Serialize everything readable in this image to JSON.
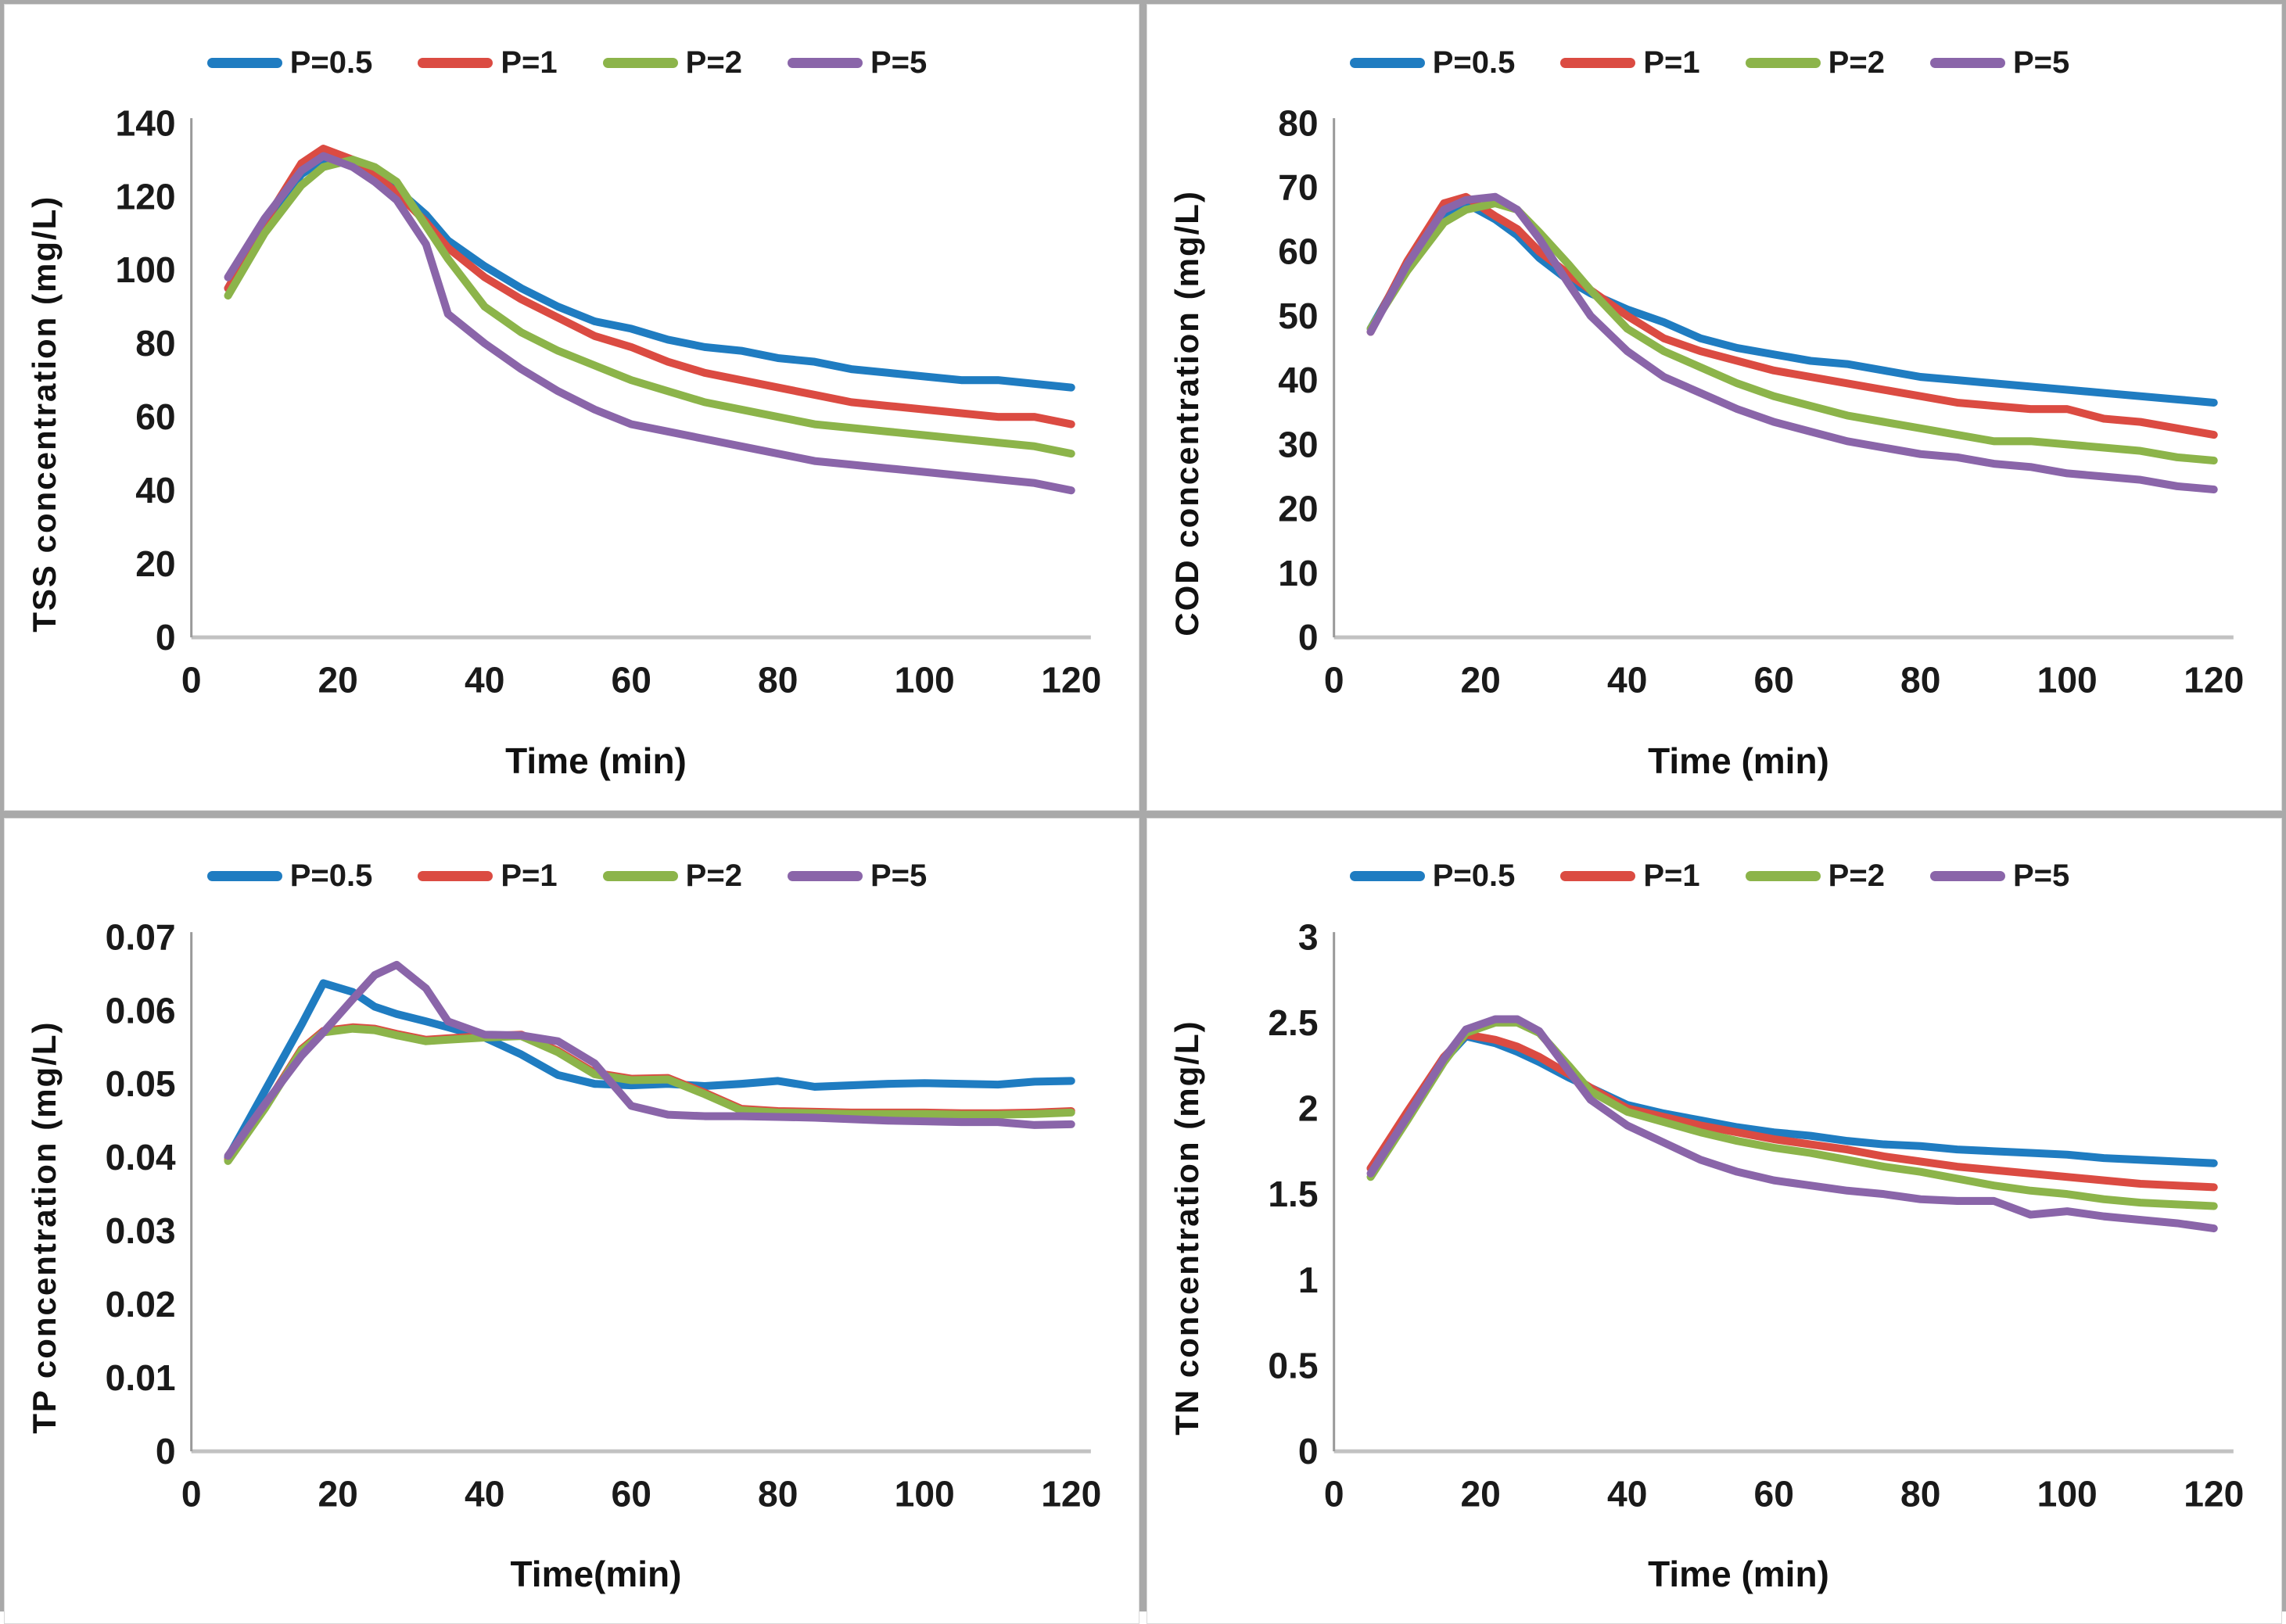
{
  "legend_labels": [
    "P=0.5",
    "P=1",
    "P=2",
    "P=5"
  ],
  "colors": {
    "p05": "#1F7CC1",
    "p1": "#DB4B42",
    "p2": "#8CB44A",
    "p5": "#8A65A9",
    "y_axis_line": "#9a9a9a",
    "x_axis_line": "#c2c2c2",
    "frame": "#a9a9a9"
  },
  "chart_data": [
    {
      "id": "tss",
      "type": "line",
      "title": "",
      "ylabel": "TSS concentration (mg/L)",
      "xlabel": "Time (min)",
      "ylim": [
        0,
        140
      ],
      "ytick": 20,
      "xlim": [
        0,
        120
      ],
      "xtick": 20,
      "grid": false,
      "legend_position": "top",
      "x": [
        5,
        10,
        15,
        18,
        22,
        25,
        28,
        32,
        35,
        40,
        45,
        50,
        55,
        60,
        65,
        70,
        75,
        80,
        85,
        90,
        95,
        100,
        105,
        110,
        115,
        120
      ],
      "series": [
        {
          "name": "P=0.5",
          "color": "#1F7CC1",
          "values": [
            95,
            112,
            126,
            130,
            129,
            127,
            122,
            115,
            108,
            101,
            95,
            90,
            86,
            84,
            81,
            79,
            78,
            76,
            75,
            73,
            72,
            71,
            70,
            70,
            69,
            68
          ]
        },
        {
          "name": "P=1",
          "color": "#DB4B42",
          "values": [
            95,
            113,
            129,
            133,
            130,
            126,
            121,
            113,
            106,
            98,
            92,
            87,
            82,
            79,
            75,
            72,
            70,
            68,
            66,
            64,
            63,
            62,
            61,
            60,
            60,
            58
          ]
        },
        {
          "name": "P=2",
          "color": "#8CB44A",
          "values": [
            93,
            110,
            123,
            128,
            130,
            128,
            124,
            112,
            103,
            90,
            83,
            78,
            74,
            70,
            67,
            64,
            62,
            60,
            58,
            57,
            56,
            55,
            54,
            53,
            52,
            50
          ]
        },
        {
          "name": "P=5",
          "color": "#8A65A9",
          "values": [
            98,
            114,
            127,
            131,
            128,
            124,
            119,
            107,
            88,
            80,
            73,
            67,
            62,
            58,
            56,
            54,
            52,
            50,
            48,
            47,
            46,
            45,
            44,
            43,
            42,
            40
          ]
        }
      ]
    },
    {
      "id": "cod",
      "type": "line",
      "title": "",
      "ylabel": "COD concentration (mg/L)",
      "xlabel": "Time (min)",
      "ylim": [
        0,
        80
      ],
      "ytick": 10,
      "xlim": [
        0,
        120
      ],
      "xtick": 20,
      "grid": false,
      "legend_position": "top",
      "x": [
        5,
        10,
        15,
        18,
        22,
        25,
        28,
        32,
        35,
        40,
        45,
        50,
        55,
        60,
        65,
        70,
        75,
        80,
        85,
        90,
        95,
        100,
        105,
        110,
        115,
        120
      ],
      "series": [
        {
          "name": "P=0.5",
          "color": "#1F7CC1",
          "values": [
            48,
            58,
            65.5,
            67.5,
            65,
            62.5,
            59,
            55.5,
            53.5,
            51,
            49,
            46.5,
            45,
            44,
            43,
            42.5,
            41.5,
            40.5,
            40,
            39.5,
            39,
            38.5,
            38,
            37.5,
            37,
            36.5
          ]
        },
        {
          "name": "P=1",
          "color": "#DB4B42",
          "values": [
            47.5,
            58.5,
            67.5,
            68.5,
            65.5,
            63.5,
            60,
            56.5,
            54,
            50,
            46.5,
            44.5,
            43,
            41.5,
            40.5,
            39.5,
            38.5,
            37.5,
            36.5,
            36,
            35.5,
            35.5,
            34,
            33.5,
            32.5,
            31.5
          ]
        },
        {
          "name": "P=2",
          "color": "#8CB44A",
          "values": [
            48,
            57,
            64.5,
            66.5,
            67.5,
            66.5,
            63,
            58,
            54,
            48,
            44.5,
            42,
            39.5,
            37.5,
            36,
            34.5,
            33.5,
            32.5,
            31.5,
            30.5,
            30.5,
            30,
            29.5,
            29,
            28,
            27.5
          ]
        },
        {
          "name": "P=5",
          "color": "#8A65A9",
          "values": [
            47.5,
            58,
            66.5,
            68,
            68.5,
            66.5,
            62,
            55,
            50,
            44.5,
            40.5,
            38,
            35.5,
            33.5,
            32,
            30.5,
            29.5,
            28.5,
            28,
            27,
            26.5,
            25.5,
            25,
            24.5,
            23.5,
            23
          ]
        }
      ]
    },
    {
      "id": "tp",
      "type": "line",
      "title": "",
      "ylabel": "TP concentration (mg/L)",
      "xlabel": "Time(min)",
      "ylim": [
        0,
        0.07
      ],
      "ytick": 0.01,
      "xlim": [
        0,
        120
      ],
      "xtick": 20,
      "grid": false,
      "legend_position": "top",
      "x": [
        5,
        10,
        15,
        18,
        22,
        25,
        28,
        32,
        35,
        40,
        45,
        50,
        55,
        60,
        65,
        70,
        75,
        80,
        85,
        90,
        95,
        100,
        105,
        110,
        115,
        120
      ],
      "series": [
        {
          "name": "P=0.5",
          "color": "#1F7CC1",
          "values": [
            0.04,
            0.049,
            0.058,
            0.0637,
            0.0625,
            0.0605,
            0.0595,
            0.0585,
            0.0577,
            0.0563,
            0.054,
            0.0512,
            0.05,
            0.0498,
            0.05,
            0.0497,
            0.05,
            0.0504,
            0.0496,
            0.0498,
            0.05,
            0.0501,
            0.05,
            0.0499,
            0.0503,
            0.0504
          ]
        },
        {
          "name": "P=1",
          "color": "#DB4B42",
          "values": [
            0.0397,
            0.0468,
            0.0547,
            0.0572,
            0.0577,
            0.0575,
            0.0568,
            0.056,
            0.0562,
            0.0565,
            0.0567,
            0.0545,
            0.0515,
            0.0507,
            0.0508,
            0.0488,
            0.0466,
            0.0463,
            0.0462,
            0.0461,
            0.0461,
            0.0461,
            0.046,
            0.046,
            0.0461,
            0.0463
          ]
        },
        {
          "name": "P=2",
          "color": "#8CB44A",
          "values": [
            0.0395,
            0.0466,
            0.0545,
            0.057,
            0.0575,
            0.0573,
            0.0566,
            0.0558,
            0.056,
            0.0563,
            0.0565,
            0.0543,
            0.0513,
            0.0505,
            0.0506,
            0.0486,
            0.0464,
            0.0461,
            0.046,
            0.0459,
            0.0459,
            0.0459,
            0.0458,
            0.0458,
            0.0459,
            0.0461
          ]
        },
        {
          "name": "P=5",
          "color": "#8A65A9",
          "values": [
            0.0402,
            0.0472,
            0.0538,
            0.057,
            0.0615,
            0.0648,
            0.0662,
            0.063,
            0.0585,
            0.0567,
            0.0566,
            0.0558,
            0.0528,
            0.047,
            0.0458,
            0.0456,
            0.0456,
            0.0455,
            0.0454,
            0.0452,
            0.045,
            0.0449,
            0.0448,
            0.0448,
            0.0444,
            0.0445
          ]
        }
      ]
    },
    {
      "id": "tn",
      "type": "line",
      "title": "",
      "ylabel": "TN concentration (mg/L)",
      "xlabel": "Time (min)",
      "ylim": [
        0,
        3
      ],
      "ytick": 0.5,
      "xlim": [
        0,
        120
      ],
      "xtick": 20,
      "grid": false,
      "legend_position": "top",
      "x": [
        5,
        10,
        15,
        18,
        22,
        25,
        28,
        32,
        35,
        40,
        45,
        50,
        55,
        60,
        65,
        70,
        75,
        80,
        85,
        90,
        95,
        100,
        105,
        110,
        115,
        120
      ],
      "series": [
        {
          "name": "P=0.5",
          "color": "#1F7CC1",
          "values": [
            1.65,
            1.97,
            2.28,
            2.42,
            2.38,
            2.33,
            2.27,
            2.18,
            2.12,
            2.02,
            1.97,
            1.93,
            1.89,
            1.86,
            1.84,
            1.81,
            1.79,
            1.78,
            1.76,
            1.75,
            1.74,
            1.73,
            1.71,
            1.7,
            1.69,
            1.68
          ]
        },
        {
          "name": "P=1",
          "color": "#DB4B42",
          "values": [
            1.65,
            1.98,
            2.3,
            2.43,
            2.4,
            2.36,
            2.3,
            2.2,
            2.12,
            2.0,
            1.95,
            1.9,
            1.86,
            1.82,
            1.79,
            1.76,
            1.72,
            1.69,
            1.66,
            1.64,
            1.62,
            1.6,
            1.58,
            1.56,
            1.55,
            1.54
          ]
        },
        {
          "name": "P=2",
          "color": "#8CB44A",
          "values": [
            1.6,
            1.93,
            2.27,
            2.44,
            2.5,
            2.5,
            2.44,
            2.25,
            2.1,
            1.98,
            1.92,
            1.86,
            1.81,
            1.77,
            1.74,
            1.7,
            1.66,
            1.63,
            1.59,
            1.55,
            1.52,
            1.5,
            1.47,
            1.45,
            1.44,
            1.43
          ]
        },
        {
          "name": "P=5",
          "color": "#8A65A9",
          "values": [
            1.62,
            1.95,
            2.29,
            2.46,
            2.52,
            2.52,
            2.45,
            2.22,
            2.05,
            1.9,
            1.8,
            1.7,
            1.63,
            1.58,
            1.55,
            1.52,
            1.5,
            1.47,
            1.46,
            1.46,
            1.38,
            1.4,
            1.37,
            1.35,
            1.33,
            1.3
          ]
        }
      ]
    }
  ]
}
